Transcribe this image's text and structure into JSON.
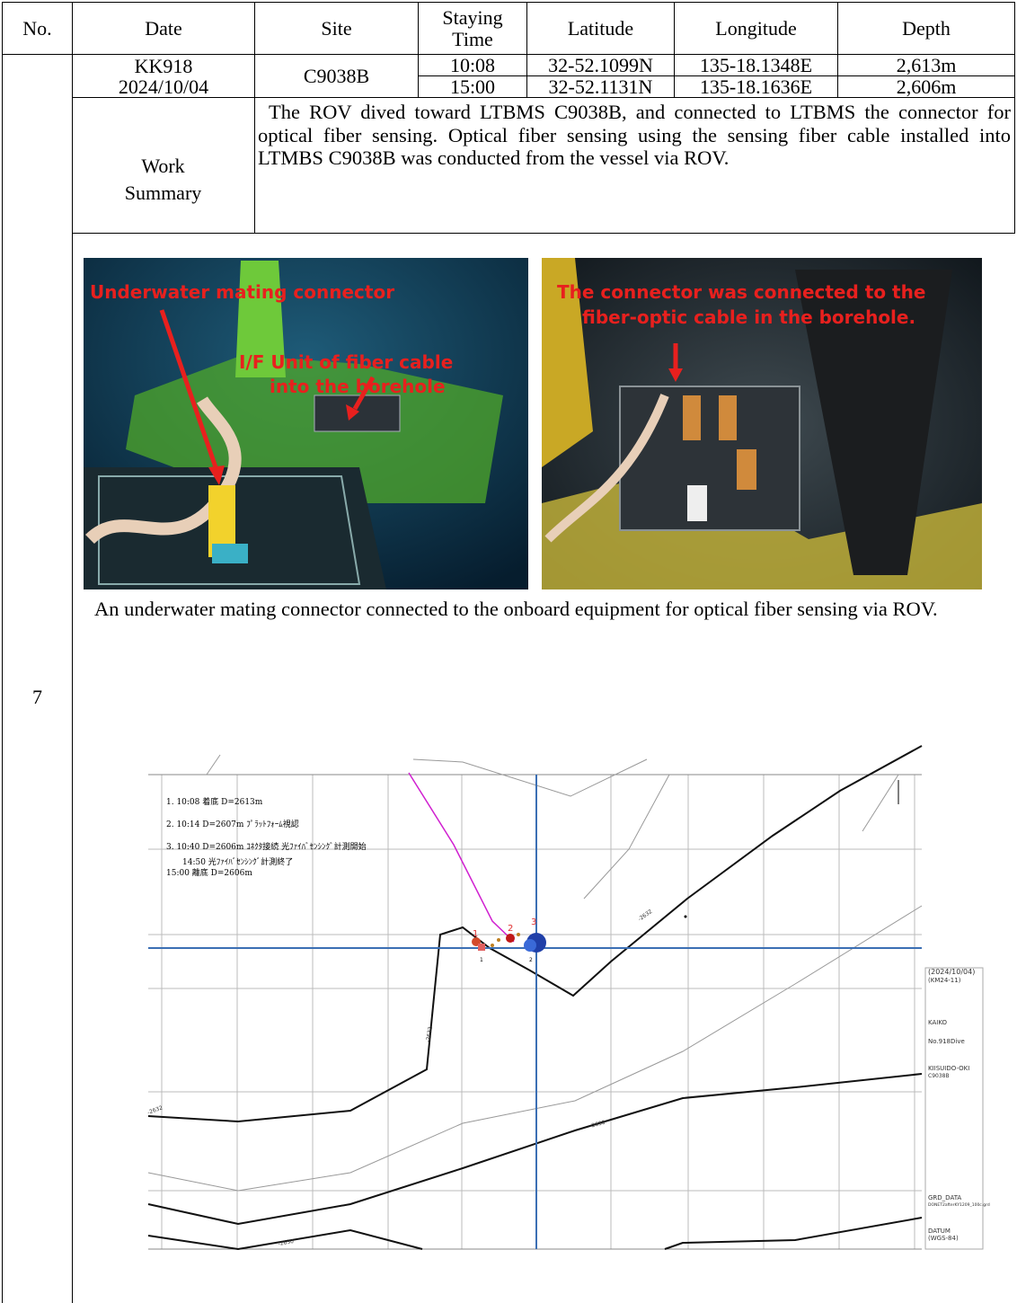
{
  "table": {
    "header": [
      "No.",
      "Date",
      "Site",
      "Staying Time",
      "Latitude",
      "Longitude",
      "Depth"
    ],
    "no": "7",
    "cruise": "KK918",
    "date": "2024/10/04",
    "site": "C9038B",
    "rows": [
      [
        "10:08",
        "32-52.1099N",
        "135-18.1348E",
        "2,613m"
      ],
      [
        "15:00",
        "32-52.1131N",
        "135-18.1636E",
        "2,606m"
      ]
    ],
    "summary_label": "Work Summary",
    "summary": "The ROV dived toward LTBMS C9038B, and connected to LTBMS the connector for optical fiber sensing. Optical fiber sensing using the sensing fiber cable installed into LTMBS C9038B was conducted from the vessel via ROV."
  },
  "photos": {
    "left_labels": [
      "Underwater mating connector",
      "I/F Unit of fiber cable",
      "into the borehole"
    ],
    "right_labels": [
      "The connector was connected to the",
      "fiber-optic cable in the borehole."
    ],
    "caption": "An underwater mating connector connected to the onboard equipment for optical fiber sensing via ROV."
  },
  "map": {
    "notes": [
      "1. 10:08 着底 D=2613m",
      "2. 10:14 D=2607m ﾌﾟﾗｯﾄﾌｫｰﾑ視認",
      "3. 10:40 D=2606m ｺﾈｸﾀ接続 光ﾌｧｲﾊﾞｾﾝｼﾝｸﾞ計測開始",
      "14:50 光ﾌｧｲﾊﾞｾﾝｼﾝｸﾞ計測終了",
      "15:00 離底 D=2606m"
    ],
    "markers": [
      "1",
      "2",
      "3"
    ],
    "contour_labels": [
      "-2632",
      "-2632",
      "-2632",
      "-2630",
      "-2630"
    ],
    "legend": [
      "(2024/10/04)",
      "(KM24-11)",
      "KAIKO",
      "No.918Dive",
      "KIISUIDO-OKI",
      "C9038B",
      "GRD_DATA",
      "DONET2afterKY1209_100c.grd",
      "DATUM",
      "(WGS-84)"
    ]
  }
}
